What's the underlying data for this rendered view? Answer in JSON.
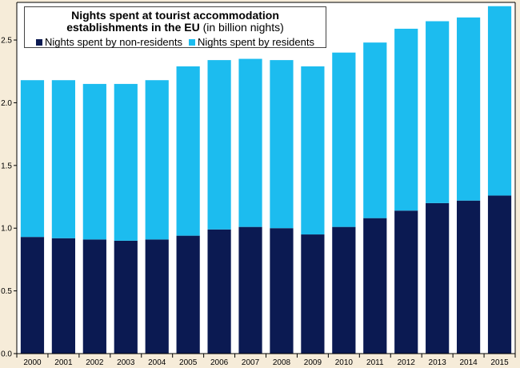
{
  "chart_data": {
    "type": "bar",
    "stacked": true,
    "title_bold_line1": "Nights spent at tourist accommodation",
    "title_bold_line2": "establishments in the EU",
    "title_rest": "(in billion nights)",
    "categories": [
      "2000",
      "2001",
      "2002",
      "2003",
      "2004",
      "2005",
      "2006",
      "2007",
      "2008",
      "2009",
      "2010",
      "2011",
      "2012",
      "2013",
      "2014",
      "2015"
    ],
    "series": [
      {
        "name": "Nights spent by non-residents",
        "color": "#0b1a52",
        "values": [
          0.93,
          0.92,
          0.91,
          0.9,
          0.91,
          0.94,
          0.99,
          1.01,
          1.0,
          0.95,
          1.01,
          1.08,
          1.14,
          1.2,
          1.22,
          1.26
        ]
      },
      {
        "name": "Nights spent by residents",
        "color": "#1cbcef",
        "values": [
          1.25,
          1.26,
          1.24,
          1.25,
          1.27,
          1.35,
          1.35,
          1.34,
          1.34,
          1.34,
          1.39,
          1.4,
          1.45,
          1.45,
          1.46,
          1.51
        ]
      }
    ],
    "ylim": [
      0,
      2.8
    ],
    "yticks": [
      0.0,
      0.5,
      1.0,
      1.5,
      2.0,
      2.5
    ],
    "ytick_labels": [
      "0.0",
      "0.5",
      "1.0",
      "1.5",
      "2.0",
      "2.5"
    ],
    "grid": false,
    "legend_position": "top-left"
  }
}
